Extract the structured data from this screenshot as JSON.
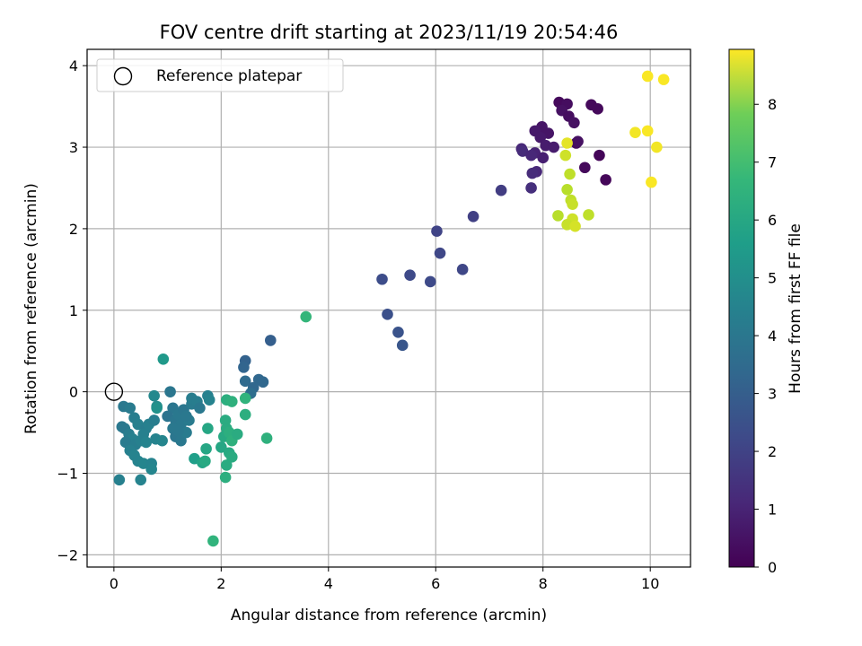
{
  "chart_data": {
    "type": "scatter",
    "title": "FOV centre drift starting at 2023/11/19 20:54:46",
    "xlabel": "Angular distance from reference (arcmin)",
    "ylabel": "Rotation from reference (arcmin)",
    "xlim": [
      -0.5,
      10.75
    ],
    "ylim": [
      -2.15,
      4.2
    ],
    "xticks": [
      0,
      2,
      4,
      6,
      8,
      10
    ],
    "yticks": [
      -2,
      -1,
      0,
      1,
      2,
      3,
      4
    ],
    "grid": true,
    "legend": {
      "position": "top-left",
      "entries": [
        {
          "label": "Reference platepar",
          "marker": "open-circle"
        }
      ]
    },
    "reference_point": {
      "x": 0,
      "y": 0
    },
    "colorbar": {
      "label": "Hours from first FF file",
      "colormap": "viridis",
      "range": [
        0,
        8.95
      ],
      "ticks": [
        0,
        1,
        2,
        3,
        4,
        5,
        6,
        7,
        8
      ]
    },
    "points": [
      {
        "x": 8.3,
        "y": 3.55,
        "c": 0.2
      },
      {
        "x": 8.45,
        "y": 3.53,
        "c": 0.3
      },
      {
        "x": 8.9,
        "y": 3.52,
        "c": 0.2
      },
      {
        "x": 9.02,
        "y": 3.47,
        "c": 0.2
      },
      {
        "x": 8.35,
        "y": 3.45,
        "c": 0.4
      },
      {
        "x": 8.48,
        "y": 3.38,
        "c": 0.3
      },
      {
        "x": 8.58,
        "y": 3.3,
        "c": 0.4
      },
      {
        "x": 7.98,
        "y": 3.25,
        "c": 0.5
      },
      {
        "x": 7.85,
        "y": 3.2,
        "c": 0.6
      },
      {
        "x": 8.1,
        "y": 3.17,
        "c": 0.5
      },
      {
        "x": 7.95,
        "y": 3.12,
        "c": 0.6
      },
      {
        "x": 8.62,
        "y": 3.05,
        "c": 0.3
      },
      {
        "x": 8.65,
        "y": 3.07,
        "c": 0.4
      },
      {
        "x": 8.05,
        "y": 3.02,
        "c": 0.7
      },
      {
        "x": 8.2,
        "y": 3.0,
        "c": 0.7
      },
      {
        "x": 7.6,
        "y": 2.98,
        "c": 1.0
      },
      {
        "x": 7.62,
        "y": 2.95,
        "c": 1.1
      },
      {
        "x": 7.85,
        "y": 2.93,
        "c": 0.9
      },
      {
        "x": 7.78,
        "y": 2.9,
        "c": 1.0
      },
      {
        "x": 8.0,
        "y": 2.87,
        "c": 0.8
      },
      {
        "x": 9.05,
        "y": 2.9,
        "c": 0.1
      },
      {
        "x": 8.78,
        "y": 2.75,
        "c": 0.2
      },
      {
        "x": 7.88,
        "y": 2.7,
        "c": 1.0
      },
      {
        "x": 7.8,
        "y": 2.68,
        "c": 1.1
      },
      {
        "x": 9.17,
        "y": 2.6,
        "c": 0.15
      },
      {
        "x": 7.78,
        "y": 2.5,
        "c": 1.2
      },
      {
        "x": 7.22,
        "y": 2.47,
        "c": 1.6
      },
      {
        "x": 6.7,
        "y": 2.15,
        "c": 1.7
      },
      {
        "x": 6.02,
        "y": 1.97,
        "c": 1.8
      },
      {
        "x": 6.08,
        "y": 1.7,
        "c": 1.9
      },
      {
        "x": 6.5,
        "y": 1.5,
        "c": 1.9
      },
      {
        "x": 5.52,
        "y": 1.43,
        "c": 2.0
      },
      {
        "x": 5.0,
        "y": 1.38,
        "c": 2.1
      },
      {
        "x": 5.9,
        "y": 1.35,
        "c": 2.0
      },
      {
        "x": 5.1,
        "y": 0.95,
        "c": 2.2
      },
      {
        "x": 5.3,
        "y": 0.73,
        "c": 2.3
      },
      {
        "x": 5.38,
        "y": 0.57,
        "c": 2.4
      },
      {
        "x": 2.92,
        "y": 0.63,
        "c": 2.7
      },
      {
        "x": 2.45,
        "y": 0.38,
        "c": 2.8
      },
      {
        "x": 2.42,
        "y": 0.3,
        "c": 2.9
      },
      {
        "x": 2.7,
        "y": 0.15,
        "c": 3.0
      },
      {
        "x": 2.78,
        "y": 0.12,
        "c": 3.0
      },
      {
        "x": 2.45,
        "y": 0.13,
        "c": 3.1
      },
      {
        "x": 2.6,
        "y": 0.05,
        "c": 3.0
      },
      {
        "x": 2.55,
        "y": -0.02,
        "c": 3.2
      },
      {
        "x": 0.18,
        "y": -0.18,
        "c": 3.6
      },
      {
        "x": 0.3,
        "y": -0.2,
        "c": 3.7
      },
      {
        "x": 0.38,
        "y": -0.32,
        "c": 3.8
      },
      {
        "x": 0.45,
        "y": -0.4,
        "c": 3.9
      },
      {
        "x": 0.2,
        "y": -0.45,
        "c": 3.7
      },
      {
        "x": 0.15,
        "y": -0.43,
        "c": 3.6
      },
      {
        "x": 0.28,
        "y": -0.52,
        "c": 3.8
      },
      {
        "x": 0.35,
        "y": -0.58,
        "c": 3.9
      },
      {
        "x": 0.22,
        "y": -0.62,
        "c": 3.7
      },
      {
        "x": 0.4,
        "y": -0.65,
        "c": 3.8
      },
      {
        "x": 0.5,
        "y": -0.6,
        "c": 3.9
      },
      {
        "x": 0.3,
        "y": -0.72,
        "c": 3.9
      },
      {
        "x": 0.38,
        "y": -0.78,
        "c": 4.0
      },
      {
        "x": 0.45,
        "y": -0.85,
        "c": 4.0
      },
      {
        "x": 0.55,
        "y": -0.88,
        "c": 4.1
      },
      {
        "x": 0.7,
        "y": -0.88,
        "c": 4.0
      },
      {
        "x": 0.7,
        "y": -0.95,
        "c": 4.1
      },
      {
        "x": 0.1,
        "y": -1.08,
        "c": 3.9
      },
      {
        "x": 0.5,
        "y": -1.08,
        "c": 4.0
      },
      {
        "x": 0.6,
        "y": -0.45,
        "c": 3.8
      },
      {
        "x": 0.65,
        "y": -0.4,
        "c": 3.9
      },
      {
        "x": 0.75,
        "y": -0.35,
        "c": 3.8
      },
      {
        "x": 0.75,
        "y": -0.05,
        "c": 4.2
      },
      {
        "x": 0.8,
        "y": -0.18,
        "c": 4.3
      },
      {
        "x": 0.78,
        "y": -0.58,
        "c": 4.0
      },
      {
        "x": 0.9,
        "y": -0.6,
        "c": 4.1
      },
      {
        "x": 0.55,
        "y": -0.52,
        "c": 3.9
      },
      {
        "x": 0.6,
        "y": -0.62,
        "c": 4.0
      },
      {
        "x": 1.05,
        "y": 0.0,
        "c": 3.5
      },
      {
        "x": 1.1,
        "y": -0.2,
        "c": 3.5
      },
      {
        "x": 1.0,
        "y": -0.3,
        "c": 3.4
      },
      {
        "x": 1.15,
        "y": -0.35,
        "c": 3.5
      },
      {
        "x": 1.2,
        "y": -0.28,
        "c": 3.6
      },
      {
        "x": 1.3,
        "y": -0.22,
        "c": 3.5
      },
      {
        "x": 1.25,
        "y": -0.4,
        "c": 3.6
      },
      {
        "x": 1.1,
        "y": -0.45,
        "c": 3.6
      },
      {
        "x": 1.15,
        "y": -0.55,
        "c": 3.5
      },
      {
        "x": 1.25,
        "y": -0.6,
        "c": 3.6
      },
      {
        "x": 1.35,
        "y": -0.5,
        "c": 3.7
      },
      {
        "x": 1.45,
        "y": -0.15,
        "c": 3.7
      },
      {
        "x": 1.45,
        "y": -0.08,
        "c": 3.8
      },
      {
        "x": 1.55,
        "y": -0.12,
        "c": 3.8
      },
      {
        "x": 1.6,
        "y": -0.2,
        "c": 3.6
      },
      {
        "x": 1.4,
        "y": -0.35,
        "c": 3.7
      },
      {
        "x": 1.2,
        "y": -0.48,
        "c": 3.6
      },
      {
        "x": 1.35,
        "y": -0.3,
        "c": 3.6
      },
      {
        "x": 1.75,
        "y": -0.05,
        "c": 3.9
      },
      {
        "x": 1.78,
        "y": -0.1,
        "c": 4.0
      },
      {
        "x": 0.92,
        "y": 0.4,
        "c": 4.8
      },
      {
        "x": 0.8,
        "y": -0.2,
        "c": 4.5
      },
      {
        "x": 1.75,
        "y": -0.45,
        "c": 5.3
      },
      {
        "x": 1.5,
        "y": -0.82,
        "c": 5.0
      },
      {
        "x": 1.65,
        "y": -0.87,
        "c": 5.2
      },
      {
        "x": 1.72,
        "y": -0.7,
        "c": 5.3
      },
      {
        "x": 1.7,
        "y": -0.85,
        "c": 5.4
      },
      {
        "x": 2.1,
        "y": -0.1,
        "c": 5.6
      },
      {
        "x": 2.2,
        "y": -0.12,
        "c": 5.7
      },
      {
        "x": 2.45,
        "y": -0.08,
        "c": 5.8
      },
      {
        "x": 2.45,
        "y": -0.28,
        "c": 5.6
      },
      {
        "x": 2.08,
        "y": -0.35,
        "c": 5.5
      },
      {
        "x": 2.1,
        "y": -0.45,
        "c": 5.5
      },
      {
        "x": 2.05,
        "y": -0.55,
        "c": 5.4
      },
      {
        "x": 2.15,
        "y": -0.5,
        "c": 5.6
      },
      {
        "x": 2.2,
        "y": -0.6,
        "c": 5.7
      },
      {
        "x": 2.3,
        "y": -0.52,
        "c": 5.5
      },
      {
        "x": 2.0,
        "y": -0.68,
        "c": 5.3
      },
      {
        "x": 2.15,
        "y": -0.75,
        "c": 5.4
      },
      {
        "x": 2.2,
        "y": -0.8,
        "c": 5.5
      },
      {
        "x": 2.1,
        "y": -0.9,
        "c": 5.5
      },
      {
        "x": 2.08,
        "y": -1.05,
        "c": 5.6
      },
      {
        "x": 2.85,
        "y": -0.57,
        "c": 5.7
      },
      {
        "x": 3.58,
        "y": 0.92,
        "c": 5.9
      },
      {
        "x": 1.85,
        "y": -1.83,
        "c": 5.8
      },
      {
        "x": 8.45,
        "y": 3.05,
        "c": 8.6
      },
      {
        "x": 8.42,
        "y": 2.9,
        "c": 8.3
      },
      {
        "x": 8.5,
        "y": 2.67,
        "c": 8.1
      },
      {
        "x": 8.45,
        "y": 2.48,
        "c": 8.0
      },
      {
        "x": 8.52,
        "y": 2.35,
        "c": 8.1
      },
      {
        "x": 8.55,
        "y": 2.3,
        "c": 8.2
      },
      {
        "x": 8.28,
        "y": 2.16,
        "c": 8.0
      },
      {
        "x": 8.85,
        "y": 2.17,
        "c": 8.1
      },
      {
        "x": 8.55,
        "y": 2.12,
        "c": 8.3
      },
      {
        "x": 8.45,
        "y": 2.05,
        "c": 8.2
      },
      {
        "x": 8.6,
        "y": 2.03,
        "c": 8.4
      },
      {
        "x": 9.95,
        "y": 3.87,
        "c": 8.9
      },
      {
        "x": 10.25,
        "y": 3.83,
        "c": 8.9
      },
      {
        "x": 9.72,
        "y": 3.18,
        "c": 8.8
      },
      {
        "x": 9.95,
        "y": 3.2,
        "c": 8.9
      },
      {
        "x": 10.12,
        "y": 3.0,
        "c": 8.8
      },
      {
        "x": 10.02,
        "y": 2.57,
        "c": 8.9
      }
    ]
  }
}
